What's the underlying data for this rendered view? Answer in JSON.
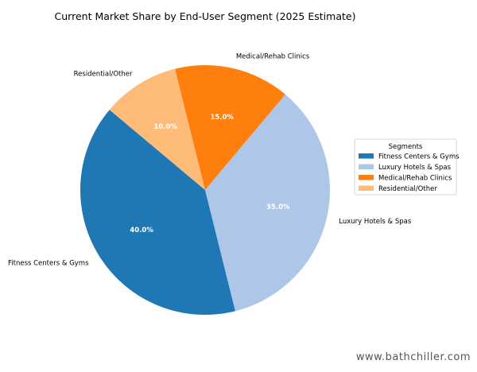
{
  "chart_data": {
    "type": "pie",
    "title": "Current Market Share by End-User Segment (2025 Estimate)",
    "categories": [
      "Fitness Centers & Gyms",
      "Luxury Hotels & Spas",
      "Medical/Rehab Clinics",
      "Residential/Other"
    ],
    "values": [
      40.0,
      35.0,
      15.0,
      10.0
    ],
    "value_labels": [
      "40.0%",
      "35.0%",
      "15.0%",
      "10.0%"
    ],
    "colors": [
      "#1f77b4",
      "#aec7e8",
      "#ff7f0e",
      "#ffbb78"
    ],
    "start_angle": 140,
    "direction": "counterclockwise",
    "legend": {
      "title": "Segments",
      "placement": "right"
    }
  },
  "watermark": "www.bathchiller.com"
}
